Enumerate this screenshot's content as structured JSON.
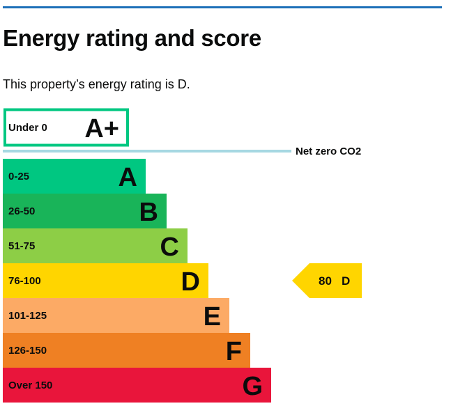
{
  "page": {
    "heading": "Energy rating and score",
    "summary": "This property’s energy rating is D."
  },
  "chart_data": {
    "type": "bar",
    "categories": [
      "A+",
      "A",
      "B",
      "C",
      "D",
      "E",
      "F",
      "G"
    ],
    "bands": [
      {
        "letter": "A+",
        "range": "Under 0",
        "color": "#ffffff",
        "border": "#00c781"
      },
      {
        "letter": "A",
        "range": "0-25",
        "color": "#00c781"
      },
      {
        "letter": "B",
        "range": "26-50",
        "color": "#19b459"
      },
      {
        "letter": "C",
        "range": "51-75",
        "color": "#8dce46"
      },
      {
        "letter": "D",
        "range": "76-100",
        "color": "#ffd500"
      },
      {
        "letter": "E",
        "range": "101-125",
        "color": "#fcaa65"
      },
      {
        "letter": "F",
        "range": "126-150",
        "color": "#ef8023"
      },
      {
        "letter": "G",
        "range": "Over 150",
        "color": "#e9153b"
      }
    ],
    "net_zero_label": "Net zero CO2",
    "net_zero_line_color": "#a6d8e2",
    "current": {
      "score": "80",
      "letter": "D",
      "band_index": 4,
      "color": "#ffd500"
    }
  }
}
